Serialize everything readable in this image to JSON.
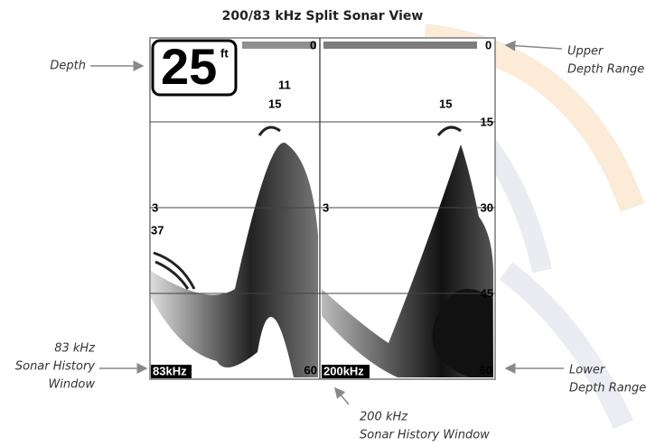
{
  "title": "200/83 kHz Split Sonar View",
  "callouts": {
    "depth": {
      "lines": [
        "Depth"
      ]
    },
    "upper_depth_range": {
      "lines": [
        "Upper",
        "Depth Range"
      ]
    },
    "sonar_history_83": {
      "lines": [
        "83 kHz",
        "Sonar History",
        "Window"
      ]
    },
    "sonar_history_200": {
      "lines": [
        "200 kHz",
        "Sonar History Window"
      ]
    },
    "lower_depth_range": {
      "lines": [
        "Lower",
        "Depth Range"
      ]
    }
  },
  "screen": {
    "depth_readout": {
      "value": "25",
      "unit": "ft"
    },
    "left_panel": {
      "upper_range": "0",
      "fish_depths": [
        "11",
        "15",
        "3",
        "37"
      ],
      "frequency": "83kHz",
      "lower_range": "60"
    },
    "right_panel": {
      "upper_range": "0",
      "fish_depths": [
        "15",
        "3"
      ],
      "scale": [
        "15",
        "30",
        "45"
      ],
      "frequency": "200kHz",
      "lower_range": "60"
    }
  }
}
